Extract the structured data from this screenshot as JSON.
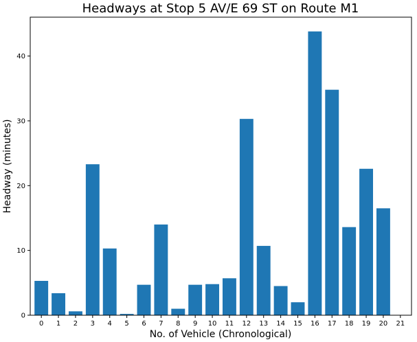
{
  "chart_data": {
    "type": "bar",
    "title": "Headways at Stop 5 AV/E 69 ST on Route M1",
    "xlabel": "No. of Vehicle (Chronological)",
    "ylabel": "Headway (minutes)",
    "categories": [
      "0",
      "1",
      "2",
      "3",
      "4",
      "5",
      "6",
      "7",
      "8",
      "9",
      "10",
      "11",
      "12",
      "13",
      "14",
      "15",
      "16",
      "17",
      "18",
      "19",
      "20",
      "21"
    ],
    "values": [
      5.3,
      3.4,
      0.6,
      23.3,
      10.3,
      0.2,
      4.7,
      14.0,
      1.0,
      4.7,
      4.8,
      5.7,
      30.3,
      10.7,
      4.5,
      2.0,
      43.8,
      34.8,
      13.6,
      22.6,
      16.5,
      null
    ],
    "yticks": [
      0,
      10,
      20,
      30,
      40
    ],
    "ylim": [
      0,
      46
    ],
    "xlim": [
      -0.65,
      21.65
    ],
    "bar_color": "#1f77b4",
    "grid": false,
    "legend": "none"
  }
}
